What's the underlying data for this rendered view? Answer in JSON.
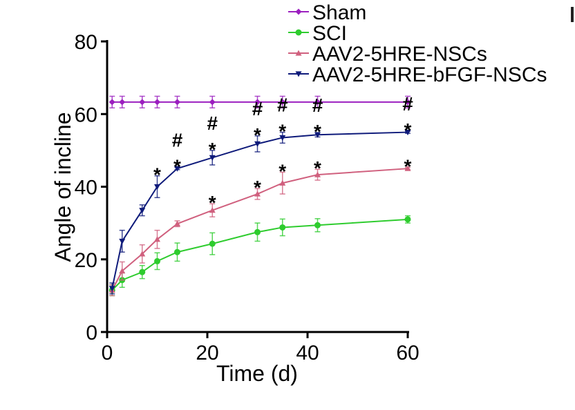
{
  "chart_data": {
    "type": "line",
    "title": "",
    "xlabel": "Time (d)",
    "ylabel": "Angle of incline",
    "xlim": [
      0,
      60
    ],
    "ylim": [
      0,
      80
    ],
    "xticks": [
      0,
      20,
      40,
      60
    ],
    "yticks": [
      0,
      20,
      40,
      60,
      80
    ],
    "grid": false,
    "legend_position": "top-right",
    "x": [
      1,
      3,
      7,
      10,
      14,
      21,
      30,
      35,
      42,
      60
    ],
    "series": [
      {
        "name": "Sham",
        "color": "#9b1fbf",
        "marker": "diamond",
        "values": [
          63.3,
          63.3,
          63.3,
          63.3,
          63.3,
          63.3,
          63.3,
          63.3,
          63.3,
          63.3
        ],
        "errors": [
          1.6,
          1.6,
          1.6,
          1.6,
          1.6,
          1.6,
          1.6,
          1.6,
          1.6,
          1.6
        ]
      },
      {
        "name": "SCI",
        "color": "#2ecc2e",
        "marker": "circle",
        "values": [
          11.5,
          14.3,
          16.5,
          19.5,
          22,
          24.3,
          27.5,
          28.8,
          29.4,
          31
        ],
        "errors": [
          1.5,
          2,
          1.8,
          2.3,
          2.5,
          3,
          2.5,
          2.3,
          1.8,
          1
        ]
      },
      {
        "name": "AAV2-5HRE-NSCs",
        "color": "#d0607e",
        "marker": "triangle",
        "values": [
          11.5,
          16.8,
          21.5,
          25.5,
          29.8,
          33.5,
          38,
          41,
          43.3,
          45
        ],
        "errors": [
          1.5,
          2.5,
          2.5,
          2.5,
          0.8,
          1.8,
          1.5,
          3,
          1.5,
          0.3
        ]
      },
      {
        "name": "AAV2-5HRE-bFGF-NSCs",
        "color": "#0e1a7a",
        "marker": "inverted-triangle",
        "values": [
          12,
          25,
          33.5,
          40,
          45,
          48,
          51.8,
          53.5,
          54.3,
          55
        ],
        "errors": [
          1.5,
          3,
          1.5,
          3,
          0.3,
          2,
          2.2,
          1.5,
          0.6,
          0.3
        ]
      }
    ],
    "annotations": [
      {
        "series": "AAV2-5HRE-bFGF-NSCs",
        "x": 10,
        "text": "*"
      },
      {
        "series": "AAV2-5HRE-bFGF-NSCs",
        "x": 14,
        "text": "#\n*"
      },
      {
        "series": "AAV2-5HRE-bFGF-NSCs",
        "x": 21,
        "text": "#\n*"
      },
      {
        "series": "AAV2-5HRE-bFGF-NSCs",
        "x": 30,
        "text": "#\n*"
      },
      {
        "series": "AAV2-5HRE-bFGF-NSCs",
        "x": 35,
        "text": "#\n*"
      },
      {
        "series": "AAV2-5HRE-bFGF-NSCs",
        "x": 42,
        "text": "#\n*"
      },
      {
        "series": "AAV2-5HRE-bFGF-NSCs",
        "x": 60,
        "text": "#\n*"
      },
      {
        "series": "AAV2-5HRE-NSCs",
        "x": 21,
        "text": "*"
      },
      {
        "series": "AAV2-5HRE-NSCs",
        "x": 30,
        "text": "*"
      },
      {
        "series": "AAV2-5HRE-NSCs",
        "x": 35,
        "text": "*"
      },
      {
        "series": "AAV2-5HRE-NSCs",
        "x": 42,
        "text": "*"
      },
      {
        "series": "AAV2-5HRE-NSCs",
        "x": 60,
        "text": "*"
      }
    ]
  }
}
